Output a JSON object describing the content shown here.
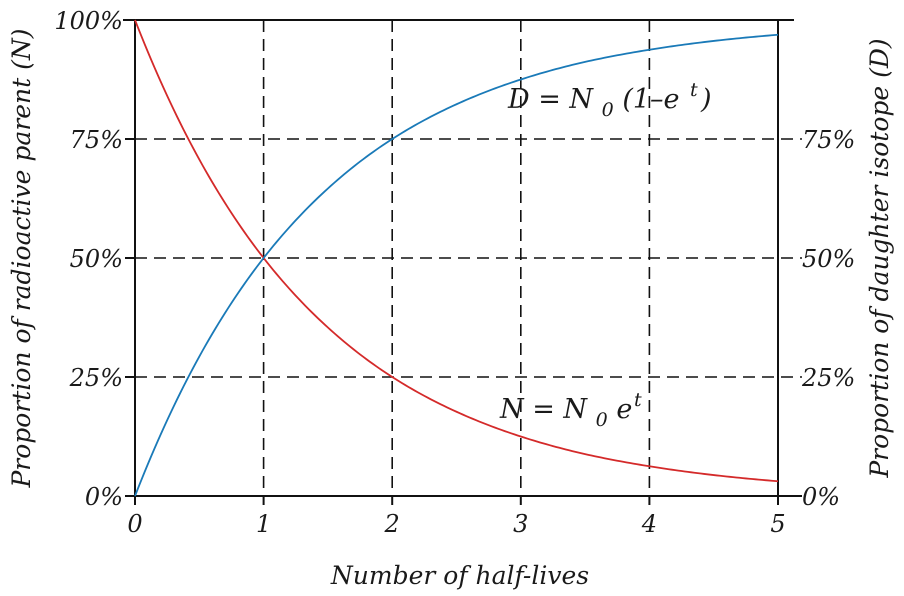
{
  "chart_data": {
    "type": "line",
    "xlabel": "Number of half-lives",
    "ylabel_left": "Proportion of radioactive parent (N)",
    "ylabel_right": "Proportion of daughter isotope (D)",
    "xlim": [
      0,
      5
    ],
    "ylim": [
      0,
      100
    ],
    "x_ticks": [
      0,
      1,
      2,
      3,
      4,
      5
    ],
    "x_tick_labels": [
      "0",
      "1",
      "2",
      "3",
      "4",
      "5"
    ],
    "y_ticks": [
      0,
      25,
      50,
      75,
      100
    ],
    "y_left_tick_labels": [
      "0%",
      "25%",
      "50%",
      "75%",
      "100%"
    ],
    "y_right_tick_labels": [
      "0%",
      "25%",
      "50%",
      "75%"
    ],
    "grid": "dashed",
    "series": [
      {
        "name": "N",
        "color": "#d42a2a",
        "x": [
          0,
          0.5,
          1,
          1.5,
          2,
          2.5,
          3,
          3.5,
          4,
          4.5,
          5
        ],
        "y": [
          100,
          70.7,
          50,
          35.4,
          25,
          17.7,
          12.5,
          8.8,
          6.25,
          4.4,
          3.1
        ]
      },
      {
        "name": "D",
        "color": "#1a7ab8",
        "x": [
          0,
          0.5,
          1,
          1.5,
          2,
          2.5,
          3,
          3.5,
          4,
          4.5,
          5
        ],
        "y": [
          0,
          29.3,
          50,
          64.6,
          75,
          82.3,
          87.5,
          91.2,
          93.75,
          95.6,
          96.9
        ]
      }
    ],
    "annotations": {
      "d_eq": {
        "main": "D = N",
        "sub": "0",
        "rest": " (1–e",
        "tail": "t",
        "end": ")"
      },
      "n_eq": {
        "main": "N = N",
        "sub": "0",
        "rest": "e",
        "tail": "t"
      }
    }
  }
}
